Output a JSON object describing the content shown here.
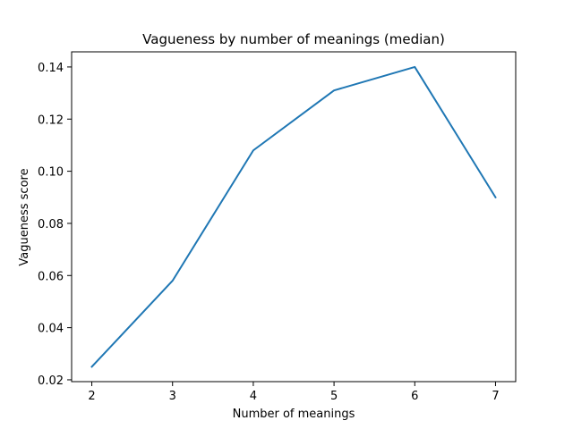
{
  "chart_data": {
    "type": "line",
    "title": "Vagueness by number of meanings (median)",
    "xlabel": "Number of meanings",
    "ylabel": "Vagueness score",
    "x": [
      2,
      3,
      4,
      5,
      6,
      7
    ],
    "series": [
      {
        "values": [
          0.025,
          0.058,
          0.108,
          0.131,
          0.14,
          0.09
        ],
        "color": "#1f77b4"
      }
    ],
    "xlim": [
      1.75,
      7.25
    ],
    "ylim": [
      0.0193,
      0.1458
    ],
    "xticks": [
      "2",
      "3",
      "4",
      "5",
      "6",
      "7"
    ],
    "yticks": [
      "0.02",
      "0.04",
      "0.06",
      "0.08",
      "0.10",
      "0.12",
      "0.14"
    ],
    "grid": false,
    "legend": "none"
  }
}
